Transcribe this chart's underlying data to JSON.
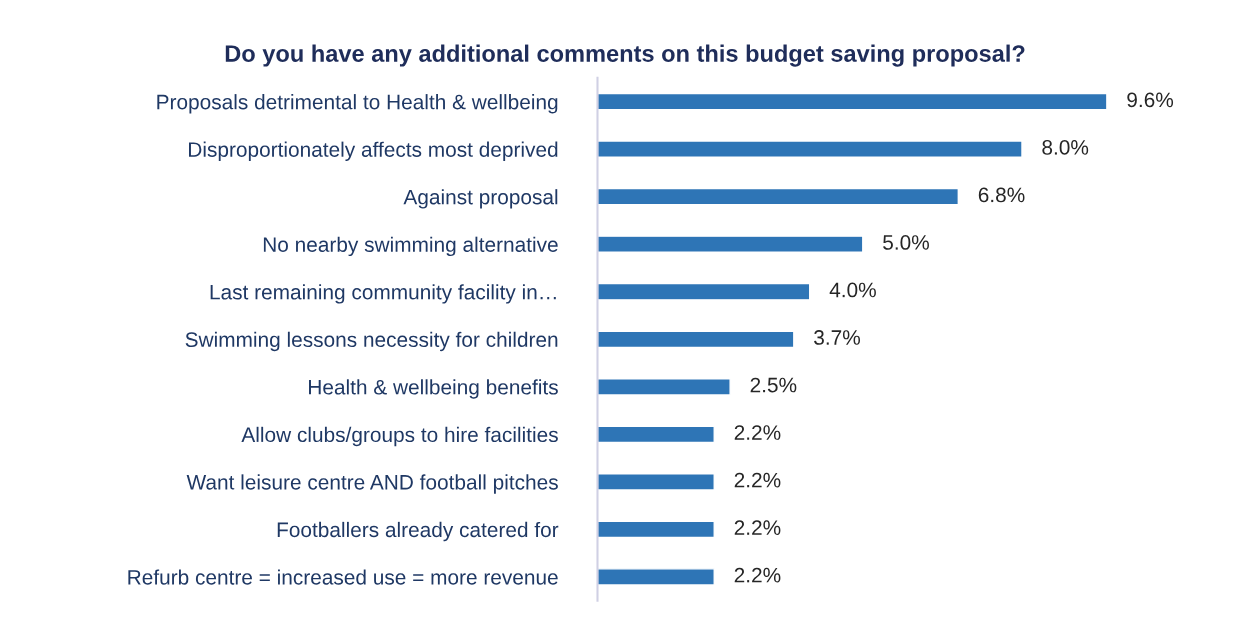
{
  "chart_data": {
    "type": "bar",
    "orientation": "horizontal",
    "title": "Do you have any additional comments on this budget saving proposal?",
    "categories": [
      "Proposals detrimental to Health & wellbeing",
      "Disproportionately affects most deprived",
      "Against proposal",
      "No nearby swimming alternative",
      "Last remaining community facility in…",
      "Swimming lessons necessity for children",
      "Health & wellbeing benefits",
      "Allow clubs/groups to hire facilities",
      "Want leisure centre AND football pitches",
      "Footballers already catered for",
      "Refurb centre = increased use = more revenue"
    ],
    "values": [
      9.6,
      8.0,
      6.8,
      5.0,
      4.0,
      3.7,
      2.5,
      2.2,
      2.2,
      2.2,
      2.2
    ],
    "value_labels": [
      "9.6%",
      "8.0%",
      "6.8%",
      "5.0%",
      "4.0%",
      "3.7%",
      "2.5%",
      "2.2%",
      "2.2%",
      "2.2%",
      "2.2%"
    ],
    "color": "#2e75b6",
    "grid": false,
    "legend": false
  }
}
